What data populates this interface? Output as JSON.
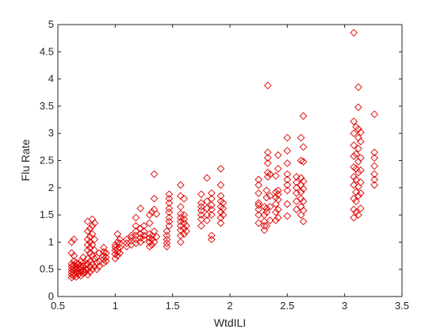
{
  "chart_data": {
    "type": "scatter",
    "title": "",
    "xlabel": "WtdILI",
    "ylabel": "Flu Rate",
    "xlim": [
      0.5,
      3.5
    ],
    "ylim": [
      0,
      5
    ],
    "xticks": [
      0.5,
      1,
      1.5,
      2,
      2.5,
      3,
      3.5
    ],
    "yticks": [
      0,
      0.5,
      1,
      1.5,
      2,
      2.5,
      3,
      3.5,
      4,
      4.5,
      5
    ],
    "xtick_labels": [
      "0.5",
      "1",
      "1.5",
      "2",
      "2.5",
      "3",
      "3.5"
    ],
    "ytick_labels": [
      "0",
      "0.5",
      "1",
      "1.5",
      "2",
      "2.5",
      "3",
      "3.5",
      "4",
      "4.5",
      "5"
    ],
    "grid": false,
    "marker": "diamond",
    "marker_color": "#e00000",
    "series": [
      {
        "points": [
          [
            0.62,
            0.35
          ],
          [
            0.62,
            0.4
          ],
          [
            0.62,
            0.45
          ],
          [
            0.62,
            0.5
          ],
          [
            0.62,
            0.55
          ],
          [
            0.62,
            0.6
          ],
          [
            0.62,
            0.8
          ],
          [
            0.62,
            1.0
          ],
          [
            0.64,
            0.38
          ],
          [
            0.64,
            0.42
          ],
          [
            0.64,
            0.48
          ],
          [
            0.64,
            0.52
          ],
          [
            0.64,
            0.58
          ],
          [
            0.64,
            0.65
          ],
          [
            0.64,
            0.75
          ],
          [
            0.64,
            1.05
          ],
          [
            0.66,
            0.36
          ],
          [
            0.66,
            0.44
          ],
          [
            0.66,
            0.5
          ],
          [
            0.66,
            0.56
          ],
          [
            0.66,
            0.62
          ],
          [
            0.68,
            0.4
          ],
          [
            0.68,
            0.46
          ],
          [
            0.68,
            0.52
          ],
          [
            0.68,
            0.6
          ],
          [
            0.7,
            0.38
          ],
          [
            0.7,
            0.45
          ],
          [
            0.7,
            0.5
          ],
          [
            0.7,
            0.55
          ],
          [
            0.7,
            0.65
          ],
          [
            0.72,
            0.42
          ],
          [
            0.72,
            0.48
          ],
          [
            0.72,
            0.55
          ],
          [
            0.72,
            0.62
          ],
          [
            0.72,
            0.72
          ],
          [
            0.74,
            0.45
          ],
          [
            0.74,
            0.5
          ],
          [
            0.74,
            0.58
          ],
          [
            0.76,
            0.4
          ],
          [
            0.76,
            0.5
          ],
          [
            0.76,
            0.6
          ],
          [
            0.76,
            0.7
          ],
          [
            0.76,
            0.85
          ],
          [
            0.76,
            0.95
          ],
          [
            0.76,
            1.05
          ],
          [
            0.76,
            1.2
          ],
          [
            0.76,
            1.38
          ],
          [
            0.78,
            0.45
          ],
          [
            0.78,
            0.55
          ],
          [
            0.78,
            0.65
          ],
          [
            0.78,
            0.8
          ],
          [
            0.78,
            0.9
          ],
          [
            0.78,
            1.0
          ],
          [
            0.78,
            1.1
          ],
          [
            0.78,
            1.25
          ],
          [
            0.8,
            0.5
          ],
          [
            0.8,
            0.6
          ],
          [
            0.8,
            0.75
          ],
          [
            0.8,
            0.95
          ],
          [
            0.8,
            1.15
          ],
          [
            0.8,
            1.3
          ],
          [
            0.8,
            1.42
          ],
          [
            0.82,
            0.55
          ],
          [
            0.82,
            0.7
          ],
          [
            0.82,
            0.85
          ],
          [
            0.82,
            1.05
          ],
          [
            0.82,
            1.35
          ],
          [
            0.84,
            0.5
          ],
          [
            0.84,
            0.62
          ],
          [
            0.84,
            0.72
          ],
          [
            0.86,
            0.55
          ],
          [
            0.86,
            0.65
          ],
          [
            0.86,
            0.8
          ],
          [
            0.9,
            0.62
          ],
          [
            0.9,
            0.68
          ],
          [
            0.9,
            0.75
          ],
          [
            0.9,
            0.82
          ],
          [
            0.9,
            0.9
          ],
          [
            0.92,
            0.65
          ],
          [
            0.92,
            0.72
          ],
          [
            0.92,
            0.8
          ],
          [
            1.0,
            0.7
          ],
          [
            1.0,
            0.78
          ],
          [
            1.0,
            0.85
          ],
          [
            1.0,
            0.9
          ],
          [
            1.0,
            0.95
          ],
          [
            1.02,
            0.75
          ],
          [
            1.02,
            0.82
          ],
          [
            1.02,
            0.88
          ],
          [
            1.02,
            1.0
          ],
          [
            1.02,
            1.15
          ],
          [
            1.04,
            0.8
          ],
          [
            1.04,
            0.9
          ],
          [
            1.04,
            0.98
          ],
          [
            1.04,
            1.05
          ],
          [
            1.1,
            0.92
          ],
          [
            1.1,
            0.98
          ],
          [
            1.1,
            1.05
          ],
          [
            1.14,
            0.95
          ],
          [
            1.14,
            1.02
          ],
          [
            1.14,
            1.08
          ],
          [
            1.14,
            1.12
          ],
          [
            1.18,
            0.98
          ],
          [
            1.18,
            1.05
          ],
          [
            1.18,
            1.12
          ],
          [
            1.18,
            1.2
          ],
          [
            1.18,
            1.3
          ],
          [
            1.18,
            1.45
          ],
          [
            1.22,
            1.0
          ],
          [
            1.22,
            1.08
          ],
          [
            1.22,
            1.15
          ],
          [
            1.22,
            1.25
          ],
          [
            1.22,
            1.62
          ],
          [
            1.25,
            1.05
          ],
          [
            1.25,
            1.12
          ],
          [
            1.25,
            1.2
          ],
          [
            1.25,
            1.3
          ],
          [
            1.3,
            0.92
          ],
          [
            1.3,
            1.0
          ],
          [
            1.3,
            1.08
          ],
          [
            1.3,
            1.15
          ],
          [
            1.3,
            1.35
          ],
          [
            1.3,
            1.5
          ],
          [
            1.32,
            0.95
          ],
          [
            1.32,
            1.05
          ],
          [
            1.32,
            1.12
          ],
          [
            1.32,
            1.55
          ],
          [
            1.34,
            1.0
          ],
          [
            1.34,
            1.2
          ],
          [
            1.34,
            1.6
          ],
          [
            1.34,
            1.8
          ],
          [
            1.34,
            2.25
          ],
          [
            1.36,
            1.1
          ],
          [
            1.36,
            1.52
          ],
          [
            1.45,
            0.92
          ],
          [
            1.45,
            0.98
          ],
          [
            1.45,
            1.05
          ],
          [
            1.45,
            1.12
          ],
          [
            1.45,
            1.2
          ],
          [
            1.47,
            1.3
          ],
          [
            1.47,
            1.38
          ],
          [
            1.47,
            1.45
          ],
          [
            1.47,
            1.55
          ],
          [
            1.47,
            1.62
          ],
          [
            1.47,
            1.72
          ],
          [
            1.47,
            1.8
          ],
          [
            1.47,
            1.88
          ],
          [
            1.57,
            1.0
          ],
          [
            1.57,
            1.12
          ],
          [
            1.57,
            1.22
          ],
          [
            1.57,
            1.3
          ],
          [
            1.57,
            1.38
          ],
          [
            1.57,
            1.45
          ],
          [
            1.57,
            1.52
          ],
          [
            1.57,
            1.65
          ],
          [
            1.57,
            1.85
          ],
          [
            1.57,
            2.05
          ],
          [
            1.6,
            1.15
          ],
          [
            1.6,
            1.25
          ],
          [
            1.6,
            1.35
          ],
          [
            1.6,
            1.42
          ],
          [
            1.6,
            1.5
          ],
          [
            1.6,
            1.8
          ],
          [
            1.62,
            1.2
          ],
          [
            1.62,
            1.3
          ],
          [
            1.75,
            1.3
          ],
          [
            1.75,
            1.42
          ],
          [
            1.75,
            1.5
          ],
          [
            1.75,
            1.58
          ],
          [
            1.75,
            1.65
          ],
          [
            1.75,
            1.72
          ],
          [
            1.75,
            1.88
          ],
          [
            1.8,
            1.4
          ],
          [
            1.8,
            1.5
          ],
          [
            1.8,
            1.62
          ],
          [
            1.8,
            1.75
          ],
          [
            1.8,
            2.18
          ],
          [
            1.84,
            1.05
          ],
          [
            1.84,
            1.12
          ],
          [
            1.84,
            1.5
          ],
          [
            1.84,
            1.6
          ],
          [
            1.84,
            1.68
          ],
          [
            1.84,
            1.8
          ],
          [
            1.84,
            1.9
          ],
          [
            1.92,
            1.35
          ],
          [
            1.92,
            1.45
          ],
          [
            1.92,
            1.55
          ],
          [
            1.92,
            1.65
          ],
          [
            1.92,
            1.75
          ],
          [
            1.92,
            1.85
          ],
          [
            1.92,
            2.05
          ],
          [
            1.92,
            2.35
          ],
          [
            1.94,
            1.5
          ],
          [
            1.94,
            1.62
          ],
          [
            1.94,
            1.72
          ],
          [
            2.25,
            1.35
          ],
          [
            2.25,
            1.5
          ],
          [
            2.25,
            1.6
          ],
          [
            2.25,
            1.68
          ],
          [
            2.25,
            1.72
          ],
          [
            2.25,
            1.9
          ],
          [
            2.25,
            2.05
          ],
          [
            2.25,
            2.15
          ],
          [
            2.3,
            1.22
          ],
          [
            2.3,
            1.3
          ],
          [
            2.3,
            1.38
          ],
          [
            2.3,
            1.5
          ],
          [
            2.3,
            1.65
          ],
          [
            2.32,
            1.3
          ],
          [
            2.32,
            1.55
          ],
          [
            2.32,
            1.62
          ],
          [
            2.32,
            1.82
          ],
          [
            2.32,
            1.95
          ],
          [
            2.33,
            2.2
          ],
          [
            2.33,
            2.28
          ],
          [
            2.33,
            2.45
          ],
          [
            2.33,
            2.55
          ],
          [
            2.33,
            2.65
          ],
          [
            2.33,
            3.88
          ],
          [
            2.35,
            1.4
          ],
          [
            2.35,
            1.65
          ],
          [
            2.35,
            1.85
          ],
          [
            2.35,
            2.25
          ],
          [
            2.4,
            1.4
          ],
          [
            2.4,
            1.55
          ],
          [
            2.4,
            1.7
          ],
          [
            2.4,
            1.82
          ],
          [
            2.4,
            1.92
          ],
          [
            2.4,
            2.22
          ],
          [
            2.42,
            1.45
          ],
          [
            2.42,
            1.6
          ],
          [
            2.42,
            1.78
          ],
          [
            2.42,
            1.88
          ],
          [
            2.42,
            1.95
          ],
          [
            2.42,
            2.35
          ],
          [
            2.42,
            2.6
          ],
          [
            2.5,
            1.48
          ],
          [
            2.5,
            1.7
          ],
          [
            2.5,
            1.95
          ],
          [
            2.5,
            2.05
          ],
          [
            2.5,
            2.15
          ],
          [
            2.5,
            2.25
          ],
          [
            2.5,
            2.45
          ],
          [
            2.5,
            2.68
          ],
          [
            2.5,
            2.92
          ],
          [
            2.58,
            1.6
          ],
          [
            2.58,
            1.75
          ],
          [
            2.58,
            1.9
          ],
          [
            2.58,
            2.0
          ],
          [
            2.58,
            2.1
          ],
          [
            2.58,
            2.2
          ],
          [
            2.62,
            1.5
          ],
          [
            2.62,
            1.65
          ],
          [
            2.62,
            1.8
          ],
          [
            2.62,
            1.92
          ],
          [
            2.62,
            2.05
          ],
          [
            2.62,
            2.18
          ],
          [
            2.62,
            2.5
          ],
          [
            2.62,
            2.92
          ],
          [
            2.64,
            1.38
          ],
          [
            2.64,
            1.58
          ],
          [
            2.64,
            1.75
          ],
          [
            2.64,
            1.98
          ],
          [
            2.64,
            2.12
          ],
          [
            2.64,
            2.48
          ],
          [
            2.64,
            2.75
          ],
          [
            2.64,
            3.32
          ],
          [
            3.08,
            1.45
          ],
          [
            3.08,
            1.6
          ],
          [
            3.08,
            1.8
          ],
          [
            3.08,
            2.05
          ],
          [
            3.08,
            2.2
          ],
          [
            3.08,
            2.38
          ],
          [
            3.08,
            2.58
          ],
          [
            3.08,
            2.78
          ],
          [
            3.08,
            3.0
          ],
          [
            3.08,
            3.22
          ],
          [
            3.08,
            4.85
          ],
          [
            3.1,
            1.55
          ],
          [
            3.1,
            1.75
          ],
          [
            3.1,
            1.92
          ],
          [
            3.1,
            2.15
          ],
          [
            3.1,
            2.35
          ],
          [
            3.1,
            2.62
          ],
          [
            3.1,
            3.12
          ],
          [
            3.12,
            1.5
          ],
          [
            3.12,
            1.85
          ],
          [
            3.12,
            2.02
          ],
          [
            3.12,
            2.28
          ],
          [
            3.12,
            2.48
          ],
          [
            3.12,
            2.72
          ],
          [
            3.12,
            2.92
          ],
          [
            3.12,
            3.08
          ],
          [
            3.12,
            3.48
          ],
          [
            3.12,
            3.85
          ],
          [
            3.14,
            1.62
          ],
          [
            3.14,
            1.9
          ],
          [
            3.14,
            2.1
          ],
          [
            3.14,
            2.32
          ],
          [
            3.14,
            2.55
          ],
          [
            3.14,
            2.85
          ],
          [
            3.14,
            3.02
          ],
          [
            3.26,
            2.05
          ],
          [
            3.26,
            2.15
          ],
          [
            3.26,
            2.25
          ],
          [
            3.26,
            2.4
          ],
          [
            3.26,
            2.55
          ],
          [
            3.26,
            2.65
          ],
          [
            3.26,
            3.35
          ]
        ]
      }
    ]
  }
}
